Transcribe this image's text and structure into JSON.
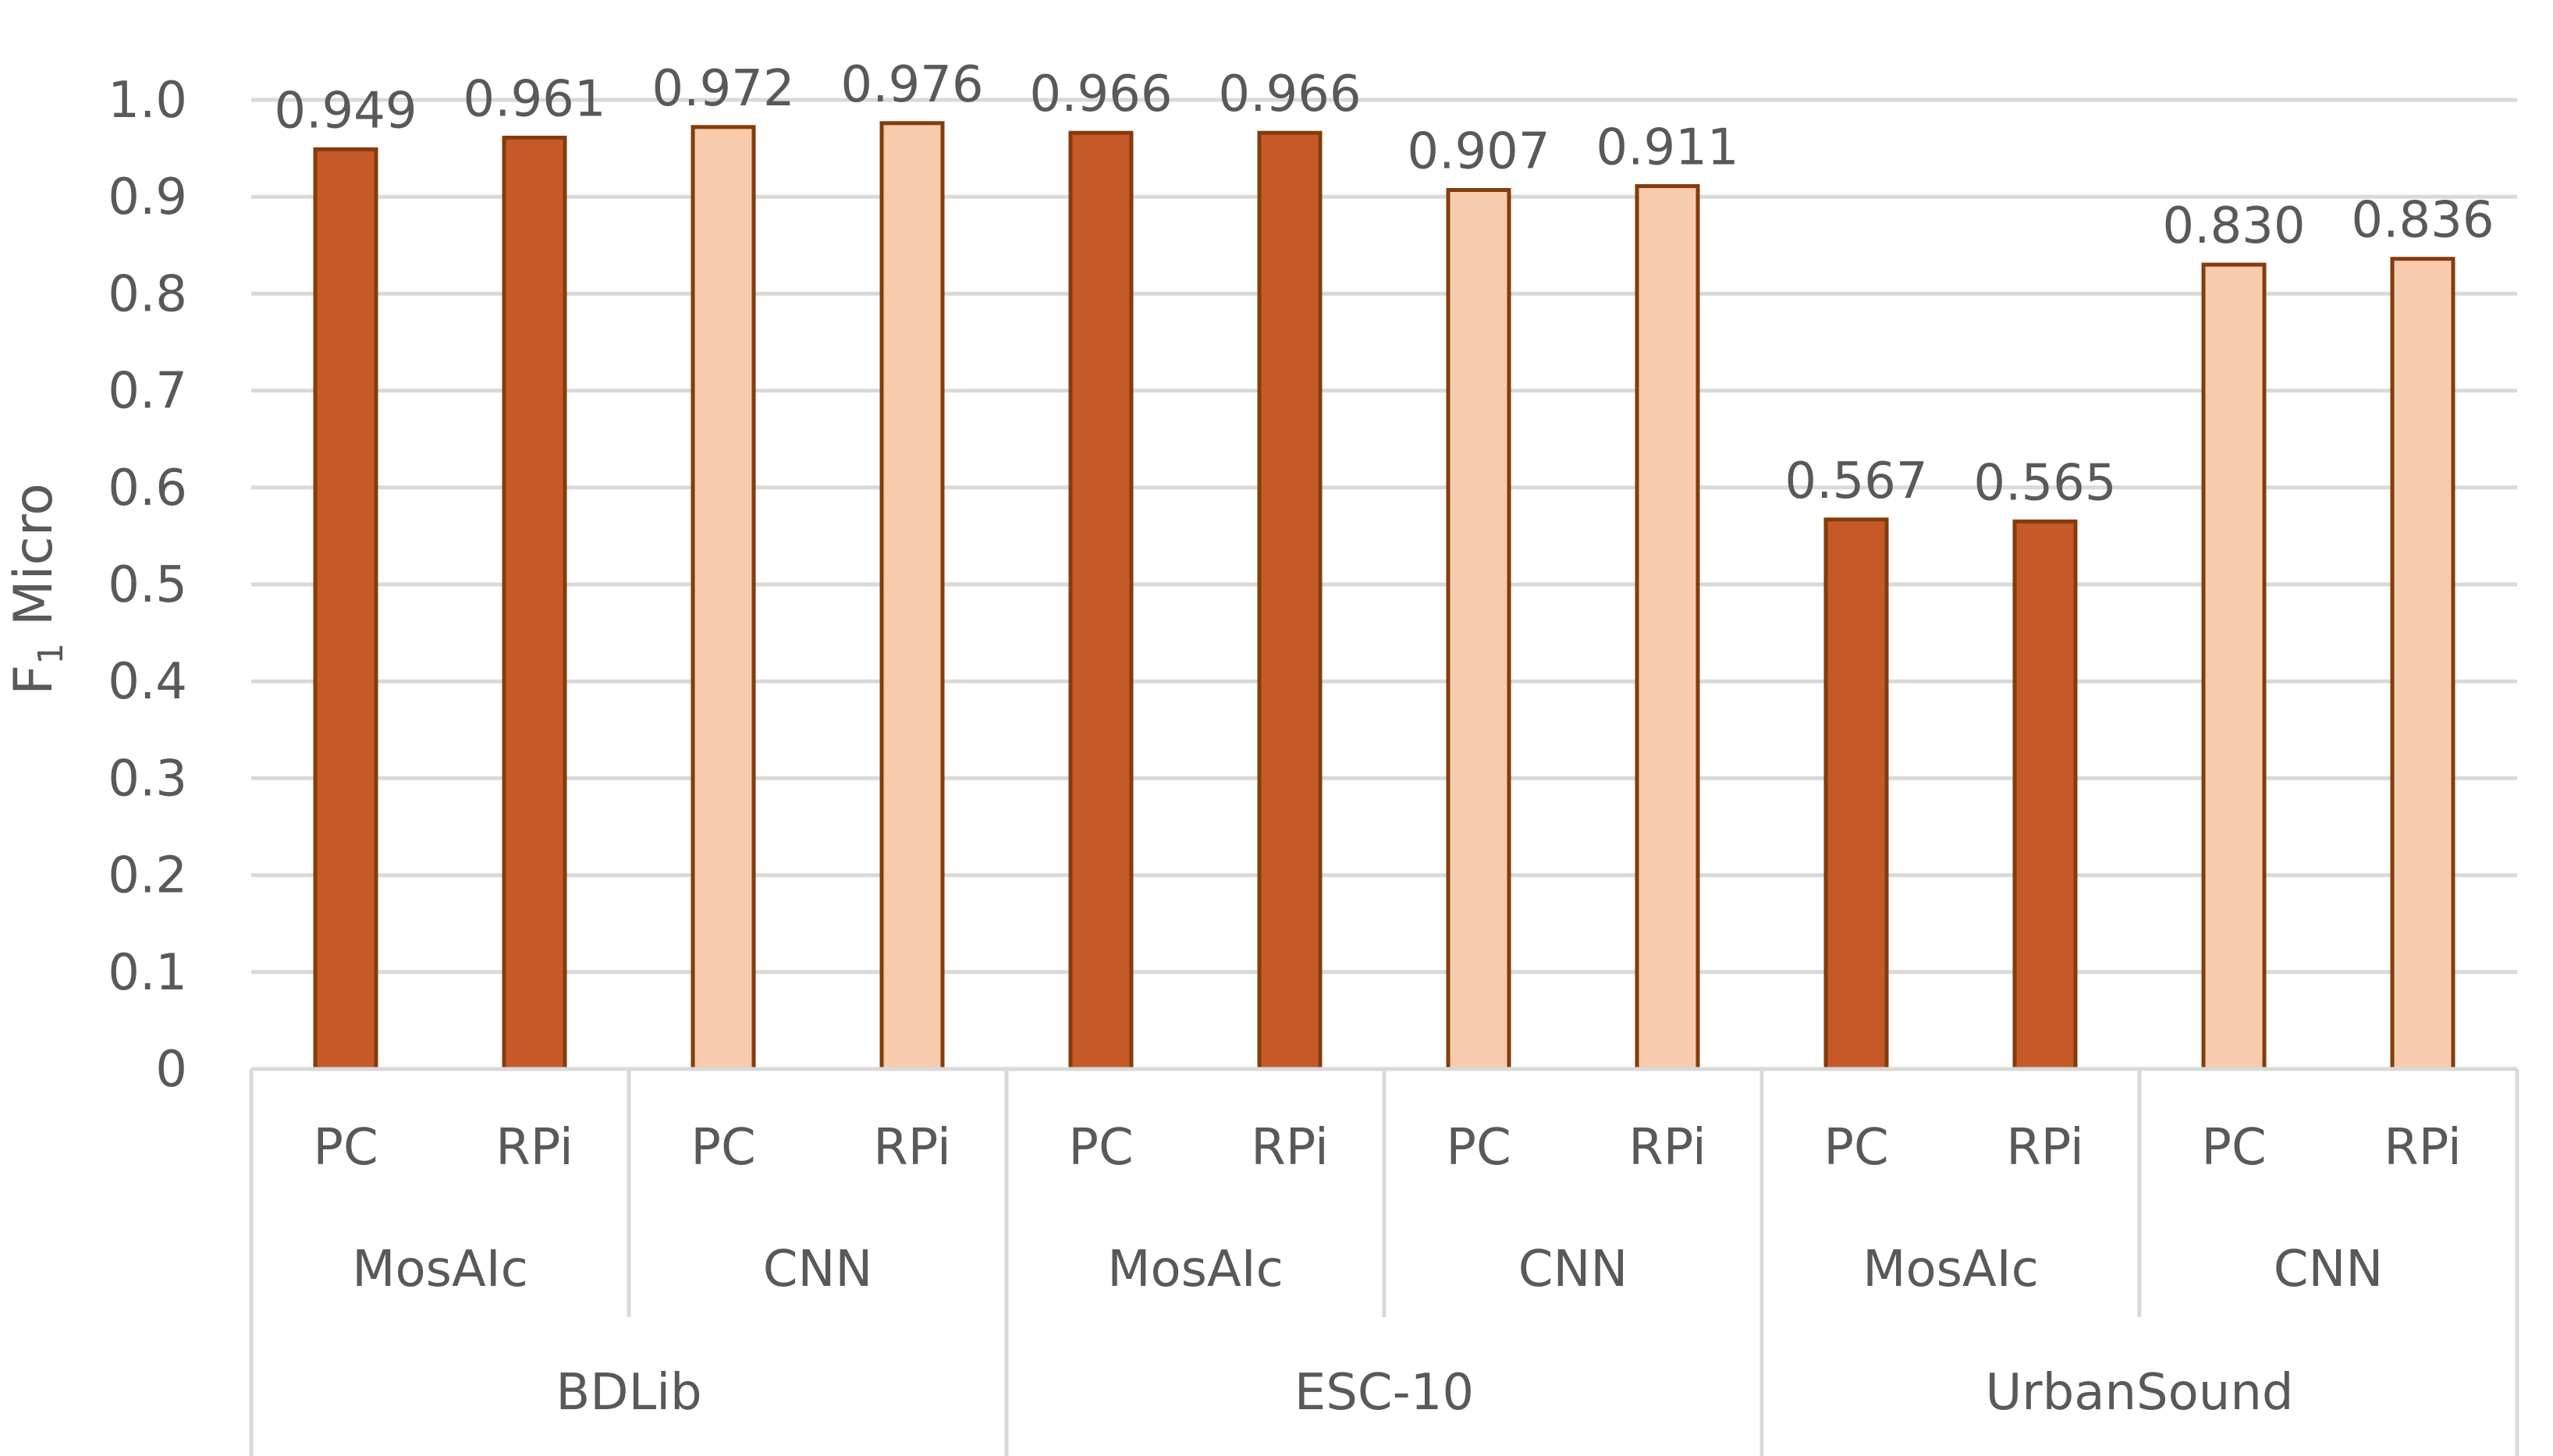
{
  "chart_data": {
    "type": "bar",
    "ylabel": "F",
    "ylabel_subscript": "1",
    "ylabel_suffix": " Micro",
    "ylim": [
      0,
      1.0
    ],
    "yticks": [
      "0",
      "0.1",
      "0.2",
      "0.3",
      "0.4",
      "0.5",
      "0.6",
      "0.7",
      "0.8",
      "0.9",
      "1.0"
    ],
    "ytick_values": [
      0,
      0.1,
      0.2,
      0.3,
      0.4,
      0.5,
      0.6,
      0.7,
      0.8,
      0.9,
      1.0
    ],
    "grid": true,
    "colors": {
      "MosAIc": "#c55a28",
      "CNN": "#f8cbad",
      "MosAIc_edge": "#843c0c",
      "CNN_edge": "#843c0c"
    },
    "groups": [
      {
        "dataset": "BDLib",
        "methods": [
          {
            "method": "MosAIc",
            "devices": [
              {
                "device": "PC",
                "value": 0.949,
                "label": "0.949"
              },
              {
                "device": "RPi",
                "value": 0.961,
                "label": "0.961"
              }
            ]
          },
          {
            "method": "CNN",
            "devices": [
              {
                "device": "PC",
                "value": 0.972,
                "label": "0.972"
              },
              {
                "device": "RPi",
                "value": 0.976,
                "label": "0.976"
              }
            ]
          }
        ]
      },
      {
        "dataset": "ESC-10",
        "methods": [
          {
            "method": "MosAIc",
            "devices": [
              {
                "device": "PC",
                "value": 0.966,
                "label": "0.966"
              },
              {
                "device": "RPi",
                "value": 0.966,
                "label": "0.966"
              }
            ]
          },
          {
            "method": "CNN",
            "devices": [
              {
                "device": "PC",
                "value": 0.907,
                "label": "0.907"
              },
              {
                "device": "RPi",
                "value": 0.911,
                "label": "0.911"
              }
            ]
          }
        ]
      },
      {
        "dataset": "UrbanSound",
        "methods": [
          {
            "method": "MosAIc",
            "devices": [
              {
                "device": "PC",
                "value": 0.567,
                "label": "0.567"
              },
              {
                "device": "RPi",
                "value": 0.565,
                "label": "0.565"
              }
            ]
          },
          {
            "method": "CNN",
            "devices": [
              {
                "device": "PC",
                "value": 0.83,
                "label": "0.830"
              },
              {
                "device": "RPi",
                "value": 0.836,
                "label": "0.836"
              }
            ]
          }
        ]
      }
    ]
  }
}
